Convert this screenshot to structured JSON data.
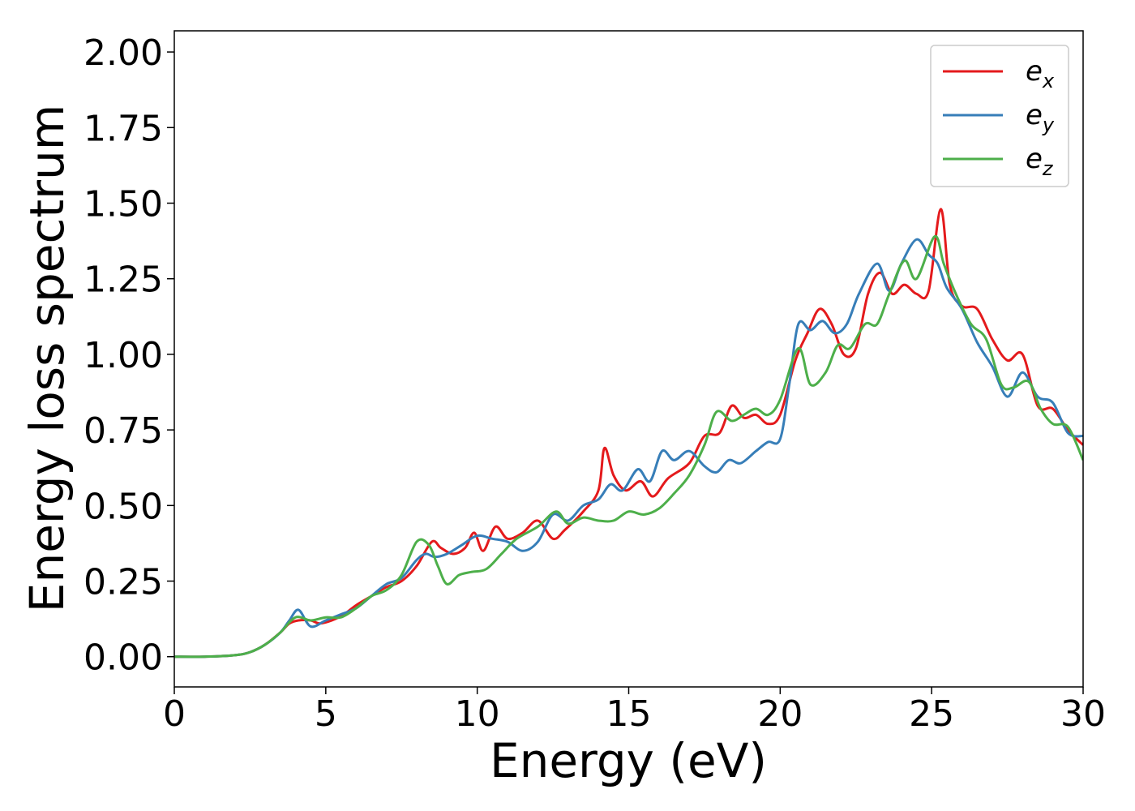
{
  "chart_data": {
    "type": "line",
    "title": "",
    "xlabel": "Energy (eV)",
    "ylabel": "Energy loss spectrum",
    "xlim": [
      0,
      30
    ],
    "ylim": [
      -0.1,
      2.07
    ],
    "xticks": [
      0,
      5,
      10,
      15,
      20,
      25,
      30
    ],
    "xtick_labels": [
      "0",
      "5",
      "10",
      "15",
      "20",
      "25",
      "30"
    ],
    "yticks": [
      0,
      0.25,
      0.5,
      0.75,
      1.0,
      1.25,
      1.5,
      1.75,
      2.0
    ],
    "ytick_labels": [
      "0.00",
      "0.25",
      "0.50",
      "0.75",
      "1.00",
      "1.25",
      "1.50",
      "1.75",
      "2.00"
    ],
    "grid": false,
    "legend_position": "top-right",
    "series": [
      {
        "name": "e",
        "subscript": "x",
        "color": "#e41a1c",
        "points": [
          [
            0,
            0
          ],
          [
            1,
            0
          ],
          [
            2,
            0.005
          ],
          [
            2.5,
            0.015
          ],
          [
            3,
            0.04
          ],
          [
            3.5,
            0.08
          ],
          [
            3.8,
            0.11
          ],
          [
            4.1,
            0.12
          ],
          [
            4.5,
            0.12
          ],
          [
            4.8,
            0.11
          ],
          [
            5.2,
            0.12
          ],
          [
            5.6,
            0.14
          ],
          [
            6,
            0.17
          ],
          [
            6.5,
            0.2
          ],
          [
            7,
            0.23
          ],
          [
            7.5,
            0.25
          ],
          [
            8,
            0.3
          ],
          [
            8.5,
            0.38
          ],
          [
            8.8,
            0.36
          ],
          [
            9.2,
            0.34
          ],
          [
            9.6,
            0.36
          ],
          [
            9.9,
            0.41
          ],
          [
            10.2,
            0.35
          ],
          [
            10.6,
            0.43
          ],
          [
            11,
            0.39
          ],
          [
            11.5,
            0.41
          ],
          [
            12,
            0.45
          ],
          [
            12.5,
            0.39
          ],
          [
            12.9,
            0.42
          ],
          [
            13.5,
            0.48
          ],
          [
            14,
            0.55
          ],
          [
            14.2,
            0.69
          ],
          [
            14.5,
            0.6
          ],
          [
            14.9,
            0.55
          ],
          [
            15.4,
            0.58
          ],
          [
            15.8,
            0.53
          ],
          [
            16.3,
            0.59
          ],
          [
            17,
            0.64
          ],
          [
            17.5,
            0.73
          ],
          [
            18,
            0.74
          ],
          [
            18.4,
            0.83
          ],
          [
            18.8,
            0.79
          ],
          [
            19.2,
            0.8
          ],
          [
            19.6,
            0.77
          ],
          [
            20,
            0.8
          ],
          [
            20.5,
            0.98
          ],
          [
            20.9,
            1.07
          ],
          [
            21.3,
            1.15
          ],
          [
            21.7,
            1.1
          ],
          [
            22.1,
            1.0
          ],
          [
            22.5,
            1.02
          ],
          [
            22.9,
            1.2
          ],
          [
            23.3,
            1.27
          ],
          [
            23.7,
            1.2
          ],
          [
            24.1,
            1.23
          ],
          [
            24.5,
            1.2
          ],
          [
            24.9,
            1.21
          ],
          [
            25.3,
            1.48
          ],
          [
            25.6,
            1.23
          ],
          [
            26,
            1.16
          ],
          [
            26.5,
            1.15
          ],
          [
            27,
            1.05
          ],
          [
            27.5,
            0.98
          ],
          [
            28,
            1.0
          ],
          [
            28.5,
            0.83
          ],
          [
            29,
            0.82
          ],
          [
            29.5,
            0.75
          ],
          [
            30,
            0.7
          ]
        ]
      },
      {
        "name": "e",
        "subscript": "y",
        "color": "#377eb8",
        "points": [
          [
            0,
            0
          ],
          [
            1,
            0
          ],
          [
            2,
            0.005
          ],
          [
            2.5,
            0.015
          ],
          [
            3,
            0.04
          ],
          [
            3.5,
            0.08
          ],
          [
            3.8,
            0.12
          ],
          [
            4.1,
            0.155
          ],
          [
            4.5,
            0.1
          ],
          [
            5,
            0.12
          ],
          [
            5.5,
            0.14
          ],
          [
            6,
            0.16
          ],
          [
            6.5,
            0.2
          ],
          [
            7,
            0.24
          ],
          [
            7.5,
            0.26
          ],
          [
            8,
            0.32
          ],
          [
            8.3,
            0.34
          ],
          [
            8.6,
            0.33
          ],
          [
            9,
            0.34
          ],
          [
            9.5,
            0.37
          ],
          [
            10,
            0.4
          ],
          [
            10.5,
            0.39
          ],
          [
            11,
            0.38
          ],
          [
            11.5,
            0.35
          ],
          [
            12,
            0.38
          ],
          [
            12.5,
            0.47
          ],
          [
            13,
            0.45
          ],
          [
            13.5,
            0.5
          ],
          [
            14,
            0.52
          ],
          [
            14.4,
            0.57
          ],
          [
            14.8,
            0.55
          ],
          [
            15.3,
            0.62
          ],
          [
            15.7,
            0.58
          ],
          [
            16.1,
            0.68
          ],
          [
            16.5,
            0.65
          ],
          [
            17,
            0.68
          ],
          [
            17.5,
            0.63
          ],
          [
            17.9,
            0.61
          ],
          [
            18.3,
            0.65
          ],
          [
            18.7,
            0.64
          ],
          [
            19.2,
            0.68
          ],
          [
            19.6,
            0.71
          ],
          [
            20,
            0.72
          ],
          [
            20.3,
            0.9
          ],
          [
            20.6,
            1.1
          ],
          [
            21,
            1.08
          ],
          [
            21.4,
            1.11
          ],
          [
            21.8,
            1.07
          ],
          [
            22.2,
            1.1
          ],
          [
            22.6,
            1.2
          ],
          [
            23.2,
            1.3
          ],
          [
            23.6,
            1.21
          ],
          [
            24,
            1.3
          ],
          [
            24.5,
            1.38
          ],
          [
            24.9,
            1.33
          ],
          [
            25.2,
            1.3
          ],
          [
            25.5,
            1.22
          ],
          [
            26,
            1.15
          ],
          [
            26.5,
            1.04
          ],
          [
            27,
            0.96
          ],
          [
            27.5,
            0.86
          ],
          [
            28,
            0.94
          ],
          [
            28.5,
            0.86
          ],
          [
            29,
            0.84
          ],
          [
            29.5,
            0.74
          ],
          [
            30,
            0.73
          ]
        ]
      },
      {
        "name": "e",
        "subscript": "z",
        "color": "#4daf4a",
        "points": [
          [
            0,
            0
          ],
          [
            1,
            0
          ],
          [
            2,
            0.005
          ],
          [
            2.5,
            0.015
          ],
          [
            3,
            0.04
          ],
          [
            3.5,
            0.08
          ],
          [
            4,
            0.13
          ],
          [
            4.5,
            0.12
          ],
          [
            5,
            0.13
          ],
          [
            5.5,
            0.13
          ],
          [
            6,
            0.16
          ],
          [
            6.5,
            0.2
          ],
          [
            7,
            0.22
          ],
          [
            7.5,
            0.27
          ],
          [
            8,
            0.38
          ],
          [
            8.4,
            0.37
          ],
          [
            8.7,
            0.3
          ],
          [
            9,
            0.24
          ],
          [
            9.4,
            0.27
          ],
          [
            9.8,
            0.28
          ],
          [
            10.3,
            0.29
          ],
          [
            10.8,
            0.34
          ],
          [
            11.3,
            0.39
          ],
          [
            12,
            0.43
          ],
          [
            12.6,
            0.48
          ],
          [
            13,
            0.44
          ],
          [
            13.5,
            0.46
          ],
          [
            14,
            0.45
          ],
          [
            14.5,
            0.45
          ],
          [
            15,
            0.48
          ],
          [
            15.5,
            0.47
          ],
          [
            16,
            0.49
          ],
          [
            16.5,
            0.54
          ],
          [
            17,
            0.6
          ],
          [
            17.5,
            0.7
          ],
          [
            17.9,
            0.81
          ],
          [
            18.4,
            0.78
          ],
          [
            18.8,
            0.8
          ],
          [
            19.2,
            0.82
          ],
          [
            19.6,
            0.8
          ],
          [
            20,
            0.85
          ],
          [
            20.6,
            1.02
          ],
          [
            21,
            0.9
          ],
          [
            21.5,
            0.94
          ],
          [
            21.9,
            1.03
          ],
          [
            22.3,
            1.02
          ],
          [
            22.8,
            1.1
          ],
          [
            23.2,
            1.1
          ],
          [
            23.6,
            1.2
          ],
          [
            24.1,
            1.31
          ],
          [
            24.5,
            1.25
          ],
          [
            25.1,
            1.39
          ],
          [
            25.4,
            1.3
          ],
          [
            25.8,
            1.2
          ],
          [
            26.3,
            1.1
          ],
          [
            26.8,
            1.05
          ],
          [
            27.3,
            0.9
          ],
          [
            27.7,
            0.89
          ],
          [
            28.2,
            0.91
          ],
          [
            28.6,
            0.82
          ],
          [
            29,
            0.77
          ],
          [
            29.5,
            0.76
          ],
          [
            30,
            0.65
          ]
        ]
      }
    ]
  }
}
